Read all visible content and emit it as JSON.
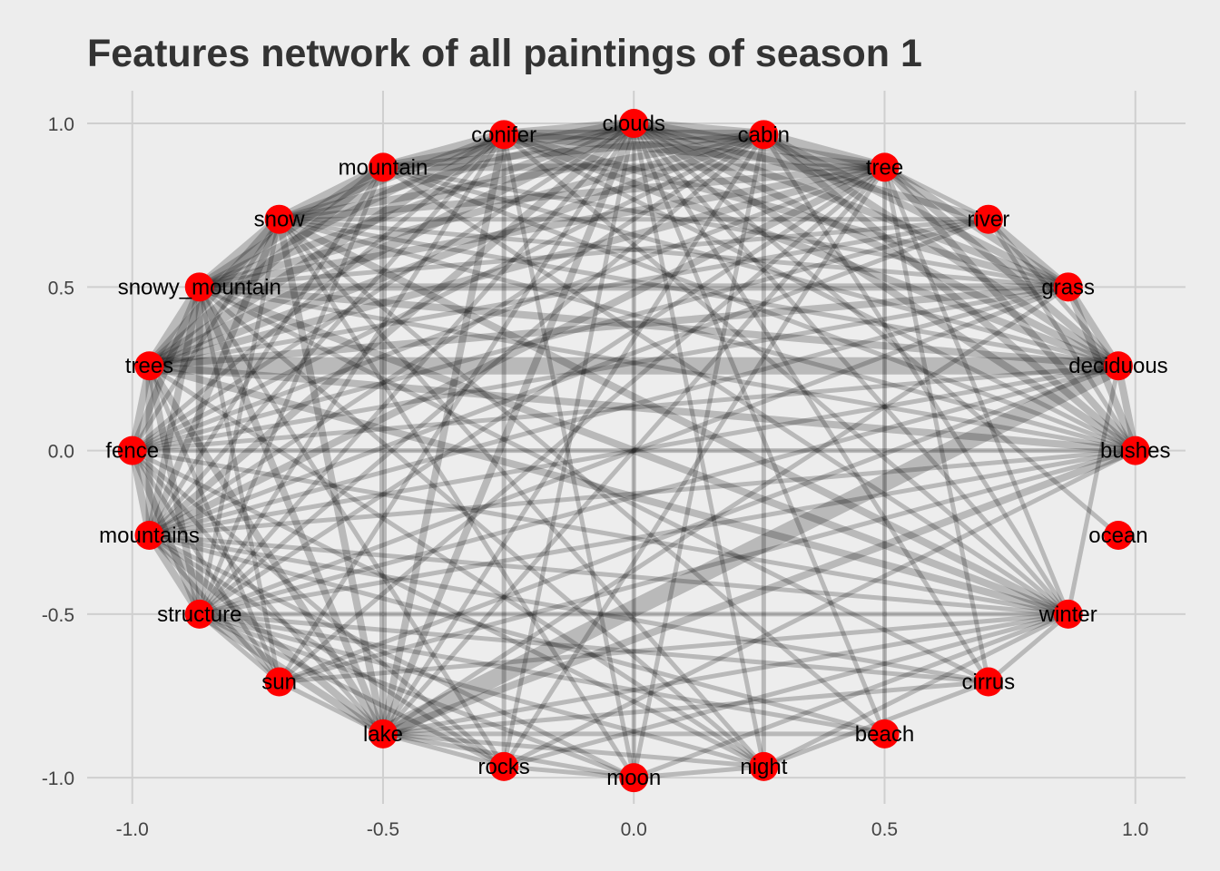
{
  "chart_data": {
    "type": "network",
    "title": "Features network of all paintings of season 1",
    "xlabel": "",
    "ylabel": "",
    "xlim": [
      -1.09,
      1.1
    ],
    "ylim": [
      -1.08,
      1.1
    ],
    "x_ticks": [
      -1.0,
      -0.5,
      0.0,
      0.5,
      1.0
    ],
    "x_tick_labels": [
      "-1.0",
      "-0.5",
      "0.0",
      "0.5",
      "1.0"
    ],
    "y_ticks": [
      1.0,
      0.5,
      0.0,
      -0.5,
      -1.0
    ],
    "y_tick_labels": [
      "1.0",
      "0.5",
      "0.0",
      "-0.5",
      "-1.0"
    ],
    "grid": true,
    "colors": {
      "background": "#ededed",
      "grid": "#cfcfcf",
      "node": "#ff0000",
      "edge": "#000000",
      "title": "#333333"
    },
    "nodes": [
      {
        "label": "clouds",
        "x": 0.0,
        "y": 1.0
      },
      {
        "label": "cabin",
        "x": 0.259,
        "y": 0.966
      },
      {
        "label": "tree",
        "x": 0.5,
        "y": 0.866
      },
      {
        "label": "river",
        "x": 0.707,
        "y": 0.707
      },
      {
        "label": "grass",
        "x": 0.866,
        "y": 0.5
      },
      {
        "label": "deciduous",
        "x": 0.966,
        "y": 0.259
      },
      {
        "label": "bushes",
        "x": 1.0,
        "y": 0.0
      },
      {
        "label": "ocean",
        "x": 0.966,
        "y": -0.259
      },
      {
        "label": "winter",
        "x": 0.866,
        "y": -0.5
      },
      {
        "label": "cirrus",
        "x": 0.707,
        "y": -0.707
      },
      {
        "label": "beach",
        "x": 0.5,
        "y": -0.866
      },
      {
        "label": "night",
        "x": 0.259,
        "y": -0.966
      },
      {
        "label": "moon",
        "x": 0.0,
        "y": -1.0
      },
      {
        "label": "rocks",
        "x": -0.259,
        "y": -0.966
      },
      {
        "label": "lake",
        "x": -0.5,
        "y": -0.866
      },
      {
        "label": "sun",
        "x": -0.707,
        "y": -0.707
      },
      {
        "label": "structure",
        "x": -0.866,
        "y": -0.5
      },
      {
        "label": "mountains",
        "x": -0.966,
        "y": -0.259
      },
      {
        "label": "fence",
        "x": -1.0,
        "y": 0.0
      },
      {
        "label": "trees",
        "x": -0.966,
        "y": 0.259
      },
      {
        "label": "snowy_mountain",
        "x": -0.866,
        "y": 0.5
      },
      {
        "label": "snow",
        "x": -0.707,
        "y": 0.707
      },
      {
        "label": "mountain",
        "x": -0.5,
        "y": 0.866
      },
      {
        "label": "conifer",
        "x": -0.259,
        "y": 0.966
      }
    ],
    "edges": [
      [
        "trees",
        "deciduous",
        4
      ],
      [
        "lake",
        "deciduous",
        4
      ],
      [
        "trees",
        "mountain",
        3
      ],
      [
        "trees",
        "snowy_mountain",
        3
      ],
      [
        "trees",
        "snow",
        3
      ],
      [
        "trees",
        "conifer",
        3
      ],
      [
        "trees",
        "clouds",
        3
      ],
      [
        "trees",
        "cabin",
        2
      ],
      [
        "trees",
        "tree",
        2
      ],
      [
        "trees",
        "grass",
        2
      ],
      [
        "trees",
        "bushes",
        2
      ],
      [
        "trees",
        "winter",
        2
      ],
      [
        "trees",
        "lake",
        2
      ],
      [
        "trees",
        "structure",
        2
      ],
      [
        "trees",
        "mountains",
        2
      ],
      [
        "trees",
        "fence",
        2
      ],
      [
        "trees",
        "sun",
        1
      ],
      [
        "trees",
        "night",
        1
      ],
      [
        "trees",
        "river",
        1
      ],
      [
        "mountain",
        "conifer",
        3
      ],
      [
        "mountain",
        "clouds",
        3
      ],
      [
        "mountain",
        "cabin",
        2
      ],
      [
        "mountain",
        "tree",
        2
      ],
      [
        "mountain",
        "snow",
        3
      ],
      [
        "mountain",
        "snowy_mountain",
        3
      ],
      [
        "mountain",
        "lake",
        2
      ],
      [
        "mountain",
        "grass",
        1
      ],
      [
        "mountain",
        "deciduous",
        1
      ],
      [
        "mountain",
        "winter",
        1
      ],
      [
        "mountain",
        "mountains",
        1
      ],
      [
        "mountain",
        "structure",
        1
      ],
      [
        "mountain",
        "bushes",
        1
      ],
      [
        "conifer",
        "clouds",
        3
      ],
      [
        "conifer",
        "cabin",
        3
      ],
      [
        "conifer",
        "tree",
        3
      ],
      [
        "conifer",
        "snow",
        2
      ],
      [
        "conifer",
        "snowy_mountain",
        2
      ],
      [
        "conifer",
        "lake",
        2
      ],
      [
        "conifer",
        "deciduous",
        2
      ],
      [
        "conifer",
        "grass",
        2
      ],
      [
        "conifer",
        "bushes",
        1
      ],
      [
        "conifer",
        "winter",
        1
      ],
      [
        "conifer",
        "moon",
        1
      ],
      [
        "conifer",
        "rocks",
        1
      ],
      [
        "conifer",
        "mountains",
        1
      ],
      [
        "conifer",
        "structure",
        1
      ],
      [
        "conifer",
        "fence",
        1
      ],
      [
        "clouds",
        "cabin",
        3
      ],
      [
        "clouds",
        "tree",
        3
      ],
      [
        "clouds",
        "river",
        2
      ],
      [
        "clouds",
        "grass",
        2
      ],
      [
        "clouds",
        "deciduous",
        2
      ],
      [
        "clouds",
        "bushes",
        2
      ],
      [
        "clouds",
        "snow",
        2
      ],
      [
        "clouds",
        "snowy_mountain",
        2
      ],
      [
        "clouds",
        "lake",
        2
      ],
      [
        "clouds",
        "mountains",
        2
      ],
      [
        "clouds",
        "structure",
        1
      ],
      [
        "clouds",
        "fence",
        1
      ],
      [
        "clouds",
        "cirrus",
        1
      ],
      [
        "clouds",
        "beach",
        1
      ],
      [
        "clouds",
        "winter",
        1
      ],
      [
        "clouds",
        "moon",
        1
      ],
      [
        "clouds",
        "night",
        1
      ],
      [
        "clouds",
        "rocks",
        1
      ],
      [
        "clouds",
        "sun",
        1
      ],
      [
        "clouds",
        "ocean",
        1
      ],
      [
        "cabin",
        "tree",
        3
      ],
      [
        "cabin",
        "snow",
        2
      ],
      [
        "cabin",
        "snowy_mountain",
        2
      ],
      [
        "cabin",
        "deciduous",
        2
      ],
      [
        "cabin",
        "grass",
        2
      ],
      [
        "cabin",
        "bushes",
        2
      ],
      [
        "cabin",
        "lake",
        1
      ],
      [
        "cabin",
        "structure",
        1
      ],
      [
        "cabin",
        "mountains",
        1
      ],
      [
        "cabin",
        "fence",
        1
      ],
      [
        "cabin",
        "winter",
        1
      ],
      [
        "cabin",
        "night",
        1
      ],
      [
        "cabin",
        "moon",
        1
      ],
      [
        "tree",
        "snow",
        2
      ],
      [
        "tree",
        "snowy_mountain",
        2
      ],
      [
        "tree",
        "grass",
        2
      ],
      [
        "tree",
        "deciduous",
        2
      ],
      [
        "tree",
        "bushes",
        2
      ],
      [
        "tree",
        "river",
        1
      ],
      [
        "tree",
        "lake",
        1
      ],
      [
        "tree",
        "mountains",
        2
      ],
      [
        "tree",
        "structure",
        1
      ],
      [
        "tree",
        "fence",
        1
      ],
      [
        "tree",
        "winter",
        1
      ],
      [
        "tree",
        "cirrus",
        1
      ],
      [
        "tree",
        "beach",
        1
      ],
      [
        "tree",
        "sun",
        1
      ],
      [
        "tree",
        "rocks",
        1
      ],
      [
        "river",
        "grass",
        2
      ],
      [
        "river",
        "deciduous",
        1
      ],
      [
        "river",
        "bushes",
        1
      ],
      [
        "river",
        "snowy_mountain",
        1
      ],
      [
        "river",
        "snow",
        1
      ],
      [
        "river",
        "fence",
        1
      ],
      [
        "river",
        "mountains",
        1
      ],
      [
        "grass",
        "deciduous",
        2
      ],
      [
        "grass",
        "bushes",
        2
      ],
      [
        "grass",
        "snowy_mountain",
        2
      ],
      [
        "grass",
        "snow",
        1
      ],
      [
        "grass",
        "lake",
        1
      ],
      [
        "grass",
        "fence",
        1
      ],
      [
        "grass",
        "mountains",
        1
      ],
      [
        "grass",
        "structure",
        1
      ],
      [
        "deciduous",
        "bushes",
        2
      ],
      [
        "deciduous",
        "snowy_mountain",
        2
      ],
      [
        "deciduous",
        "snow",
        1
      ],
      [
        "deciduous",
        "fence",
        1
      ],
      [
        "deciduous",
        "mountains",
        1
      ],
      [
        "deciduous",
        "structure",
        1
      ],
      [
        "deciduous",
        "winter",
        1
      ],
      [
        "deciduous",
        "sun",
        1
      ],
      [
        "bushes",
        "snowy_mountain",
        1
      ],
      [
        "bushes",
        "snow",
        1
      ],
      [
        "bushes",
        "lake",
        2
      ],
      [
        "bushes",
        "mountains",
        1
      ],
      [
        "bushes",
        "fence",
        1
      ],
      [
        "bushes",
        "structure",
        1
      ],
      [
        "bushes",
        "sun",
        1
      ],
      [
        "bushes",
        "rocks",
        1
      ],
      [
        "winter",
        "snowy_mountain",
        2
      ],
      [
        "winter",
        "snow",
        2
      ],
      [
        "winter",
        "structure",
        1
      ],
      [
        "winter",
        "mountains",
        1
      ],
      [
        "winter",
        "lake",
        1
      ],
      [
        "winter",
        "fence",
        1
      ],
      [
        "winter",
        "cirrus",
        1
      ],
      [
        "winter",
        "night",
        1
      ],
      [
        "winter",
        "moon",
        1
      ],
      [
        "winter",
        "sun",
        1
      ],
      [
        "winter",
        "rocks",
        1
      ],
      [
        "cirrus",
        "snowy_mountain",
        1
      ],
      [
        "cirrus",
        "lake",
        1
      ],
      [
        "cirrus",
        "mountains",
        1
      ],
      [
        "cirrus",
        "night",
        1
      ],
      [
        "cirrus",
        "structure",
        1
      ],
      [
        "beach",
        "mountains",
        1
      ],
      [
        "beach",
        "lake",
        1
      ],
      [
        "beach",
        "structure",
        1
      ],
      [
        "beach",
        "snow",
        1
      ],
      [
        "night",
        "moon",
        1
      ],
      [
        "night",
        "lake",
        1
      ],
      [
        "night",
        "snow",
        1
      ],
      [
        "night",
        "snowy_mountain",
        1
      ],
      [
        "night",
        "fence",
        1
      ],
      [
        "night",
        "structure",
        1
      ],
      [
        "moon",
        "lake",
        1
      ],
      [
        "moon",
        "snow",
        1
      ],
      [
        "moon",
        "mountains",
        1
      ],
      [
        "moon",
        "structure",
        1
      ],
      [
        "moon",
        "rocks",
        1
      ],
      [
        "rocks",
        "lake",
        1
      ],
      [
        "rocks",
        "snowy_mountain",
        1
      ],
      [
        "rocks",
        "mountains",
        1
      ],
      [
        "rocks",
        "fence",
        1
      ],
      [
        "rocks",
        "structure",
        1
      ],
      [
        "lake",
        "snowy_mountain",
        2
      ],
      [
        "lake",
        "snow",
        2
      ],
      [
        "lake",
        "mountains",
        2
      ],
      [
        "lake",
        "structure",
        2
      ],
      [
        "lake",
        "fence",
        1
      ],
      [
        "lake",
        "sun",
        1
      ],
      [
        "sun",
        "snowy_mountain",
        1
      ],
      [
        "sun",
        "mountains",
        1
      ],
      [
        "sun",
        "structure",
        1
      ],
      [
        "sun",
        "fence",
        1
      ],
      [
        "structure",
        "snowy_mountain",
        2
      ],
      [
        "structure",
        "snow",
        1
      ],
      [
        "structure",
        "mountains",
        2
      ],
      [
        "structure",
        "fence",
        2
      ],
      [
        "mountains",
        "snowy_mountain",
        2
      ],
      [
        "mountains",
        "snow",
        2
      ],
      [
        "mountains",
        "fence",
        2
      ],
      [
        "fence",
        "snowy_mountain",
        2
      ],
      [
        "fence",
        "snow",
        1
      ],
      [
        "snowy_mountain",
        "snow",
        3
      ]
    ]
  }
}
